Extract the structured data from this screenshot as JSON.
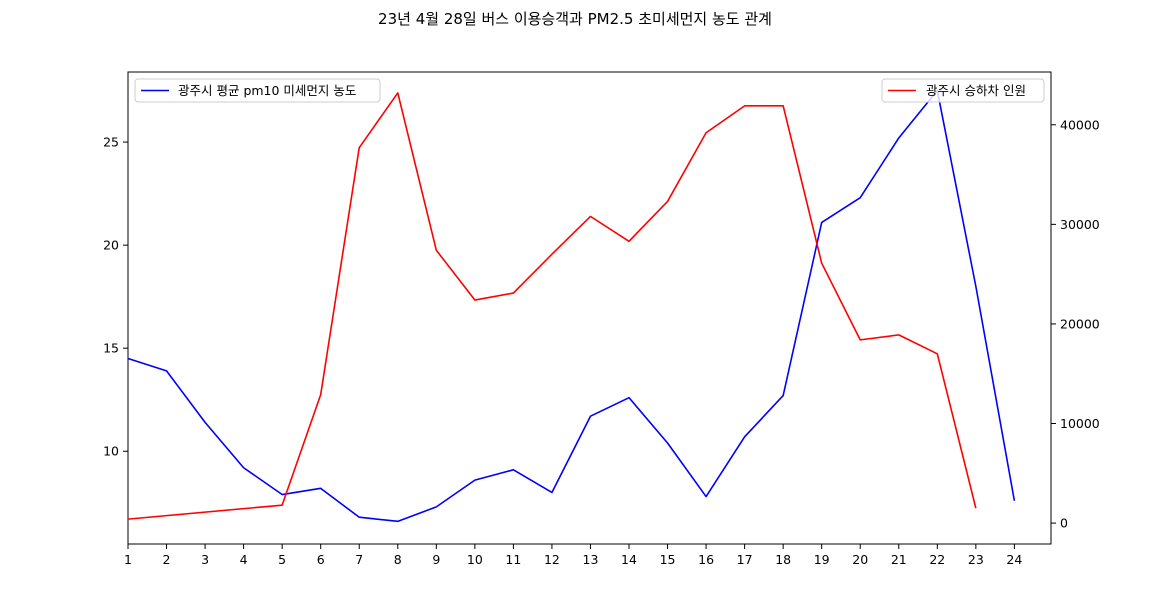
{
  "chart_data": {
    "type": "line",
    "title": "23년 4월 28일 버스 이용승객과 PM2.5 초미세먼지 농도 관계",
    "xlabel": "",
    "ylabel_left": "",
    "ylabel_right": "",
    "x": [
      1,
      2,
      3,
      4,
      5,
      6,
      7,
      8,
      9,
      10,
      11,
      12,
      13,
      14,
      15,
      16,
      17,
      18,
      19,
      20,
      21,
      22,
      23,
      24
    ],
    "x_ticks": [
      "1",
      "2",
      "3",
      "4",
      "5",
      "6",
      "7",
      "8",
      "9",
      "10",
      "11",
      "12",
      "13",
      "14",
      "15",
      "16",
      "17",
      "18",
      "19",
      "20",
      "21",
      "22",
      "23",
      "24"
    ],
    "xlim": [
      1,
      24.95
    ],
    "grid": false,
    "series": [
      {
        "name": "광주시 평균 pm10 미세먼지 농도",
        "axis": "left",
        "color": "#0000ff",
        "x": [
          1,
          2,
          3,
          4,
          5,
          6,
          7,
          8,
          9,
          10,
          11,
          12,
          13,
          14,
          15,
          16,
          17,
          18,
          19,
          20,
          21,
          22,
          23,
          24
        ],
        "values": [
          14.5,
          13.9,
          11.4,
          9.2,
          7.9,
          8.2,
          6.8,
          6.6,
          7.3,
          8.6,
          9.1,
          8.0,
          11.7,
          12.6,
          10.4,
          7.8,
          10.7,
          12.7,
          21.1,
          22.3,
          25.2,
          27.5,
          18.0,
          7.6
        ]
      },
      {
        "name": "광주시 승하차 인원",
        "axis": "right",
        "color": "#ff0000",
        "x": [
          1,
          5,
          6,
          7,
          8,
          9,
          10,
          11,
          12,
          13,
          14,
          15,
          16,
          17,
          18,
          19,
          20,
          21,
          22,
          23
        ],
        "values": [
          400,
          1800,
          12900,
          37700,
          43200,
          27400,
          22400,
          23100,
          27000,
          30800,
          28300,
          32300,
          39200,
          41900,
          41900,
          26100,
          18400,
          18900,
          17000,
          1500
        ]
      }
    ],
    "y_left": {
      "ylim": [
        5.5,
        28.4
      ],
      "ticks": [
        10,
        15,
        20,
        25
      ],
      "tick_labels": [
        "10",
        "15",
        "20",
        "25"
      ]
    },
    "y_right": {
      "ylim": [
        -2100,
        45300
      ],
      "ticks": [
        0,
        10000,
        20000,
        30000,
        40000
      ],
      "tick_labels": [
        "0",
        "10000",
        "20000",
        "30000",
        "40000"
      ]
    },
    "legends": [
      {
        "placement": "upper-left",
        "entries": [
          "광주시 평균 pm10 미세먼지 농도"
        ]
      },
      {
        "placement": "upper-right",
        "entries": [
          "광주시 승하차 인원"
        ]
      }
    ]
  }
}
